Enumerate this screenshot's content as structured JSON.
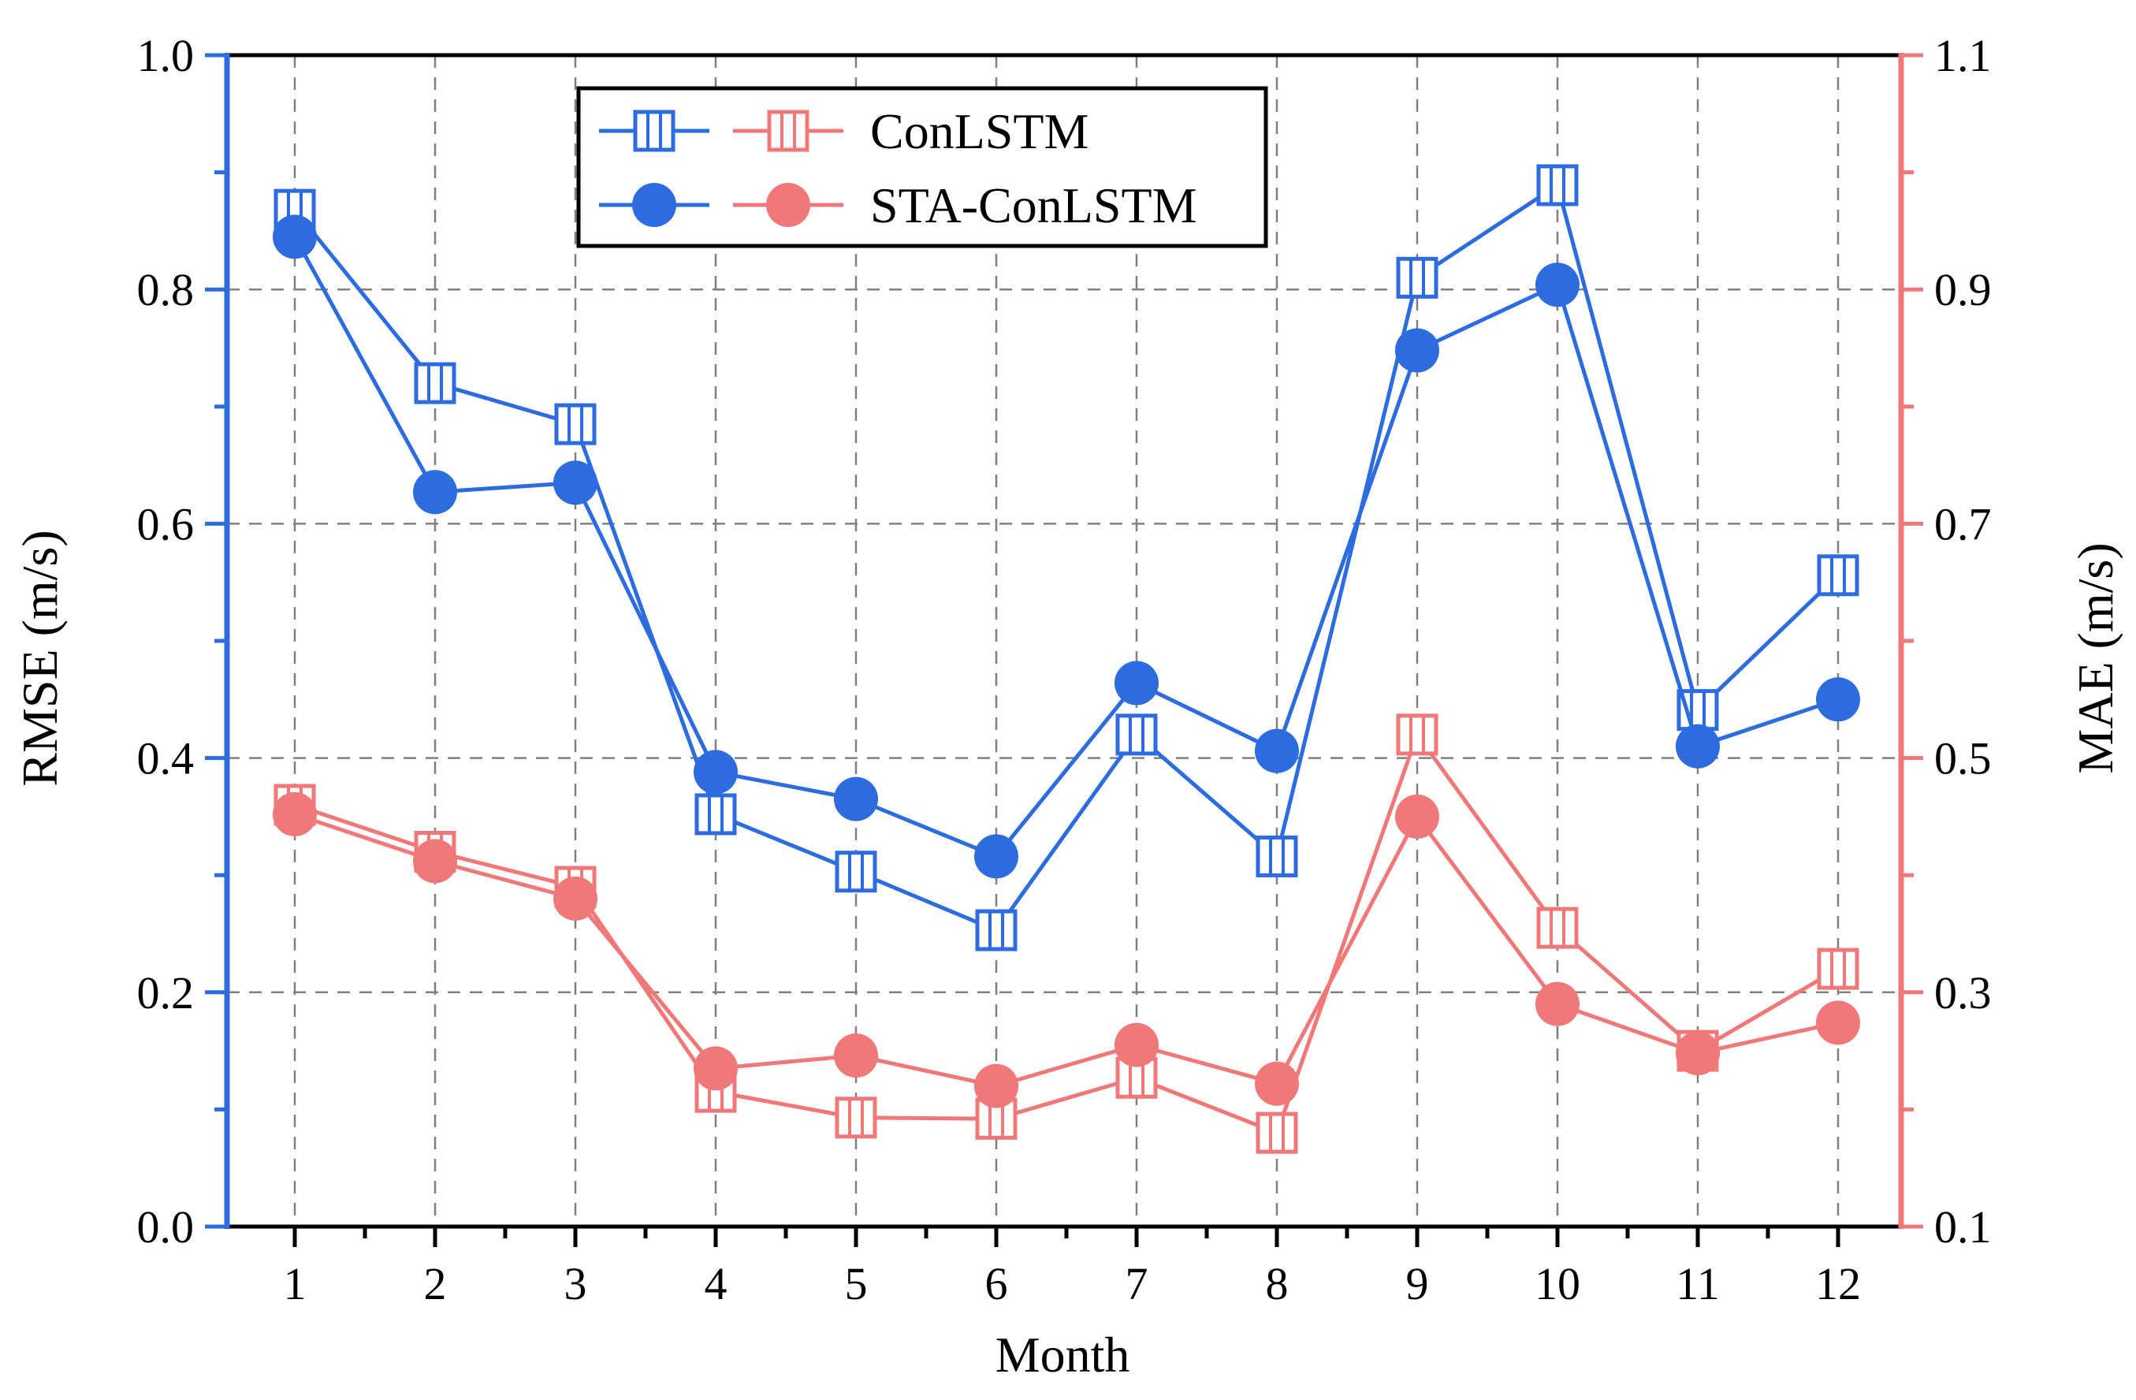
{
  "chart_data": {
    "type": "line",
    "xlabel": "Month",
    "ylabel_left": "RMSE (m/s)",
    "ylabel_right": "MAE (m/s)",
    "categories": [
      "1",
      "2",
      "3",
      "4",
      "5",
      "6",
      "7",
      "8",
      "9",
      "10",
      "11",
      "12"
    ],
    "y_left_range": [
      0.0,
      1.0
    ],
    "y_left_ticks": [
      "0.0",
      "0.2",
      "0.4",
      "0.6",
      "0.8",
      "1.0"
    ],
    "y_right_range": [
      0.1,
      1.1
    ],
    "y_right_ticks": [
      "0.1",
      "0.3",
      "0.5",
      "0.7",
      "0.9",
      "1.1"
    ],
    "grid": true,
    "legend_position": "top-center",
    "legend_labels": [
      "ConLSTM",
      "STA-ConLSTM"
    ],
    "colors": {
      "rmse": "#2C6BE0",
      "mae": "#F07878",
      "left_axis": "#2C6BE0",
      "right_axis": "#F07878"
    },
    "series": [
      {
        "name": "ConLSTM",
        "metric": "RMSE",
        "axis": "left",
        "marker": "square-open",
        "values": [
          0.868,
          0.72,
          0.685,
          0.352,
          0.303,
          0.253,
          0.42,
          0.316,
          0.81,
          0.889,
          0.441,
          0.556
        ]
      },
      {
        "name": "STA-ConLSTM",
        "metric": "RMSE",
        "axis": "left",
        "marker": "circle-filled",
        "values": [
          0.845,
          0.627,
          0.635,
          0.388,
          0.365,
          0.316,
          0.464,
          0.406,
          0.748,
          0.804,
          0.41,
          0.45
        ]
      },
      {
        "name": "ConLSTM",
        "metric": "MAE",
        "axis": "right",
        "marker": "square-open",
        "values": [
          0.46,
          0.42,
          0.39,
          0.215,
          0.193,
          0.192,
          0.227,
          0.18,
          0.52,
          0.355,
          0.25,
          0.32
        ]
      },
      {
        "name": "STA-ConLSTM",
        "metric": "MAE",
        "axis": "right",
        "marker": "circle-filled",
        "values": [
          0.452,
          0.412,
          0.38,
          0.235,
          0.246,
          0.22,
          0.255,
          0.222,
          0.45,
          0.29,
          0.248,
          0.274
        ]
      }
    ]
  }
}
